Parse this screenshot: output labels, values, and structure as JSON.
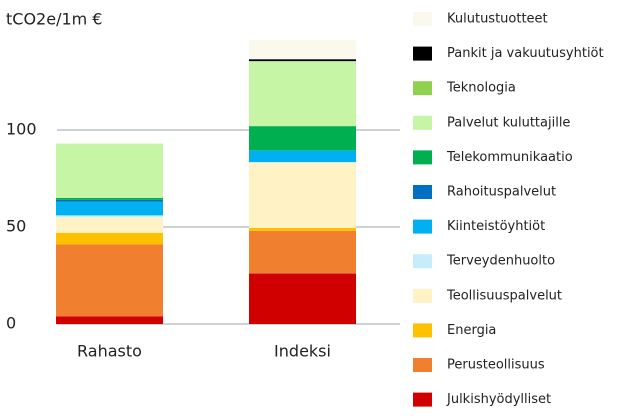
{
  "chart_data": {
    "type": "stacked_bar",
    "ylabel": "tCO2e/1m €",
    "categories": [
      "Rahasto",
      "Indeksi"
    ],
    "ylim": [
      0,
      150
    ],
    "yticks": [
      0,
      50,
      100
    ],
    "grid": true,
    "series": [
      {
        "name": "Kulutustuotteet",
        "color": "#fbf8ee",
        "values": [
          0,
          10
        ]
      },
      {
        "name": "Pankit ja vakuutusyhtiöt",
        "color": "#000000",
        "values": [
          0,
          1
        ]
      },
      {
        "name": "Teknologia",
        "color": "#92d050",
        "values": [
          0,
          0
        ]
      },
      {
        "name": "Palvelut kuluttajille",
        "color": "#c6f5a6",
        "values": [
          28,
          33.5
        ]
      },
      {
        "name": "Telekommunikaatio",
        "color": "#00b050",
        "values": [
          1,
          12.5
        ]
      },
      {
        "name": "Rahoituspalvelut",
        "color": "#0070c0",
        "values": [
          1,
          0
        ]
      },
      {
        "name": "Kiinteistöyhtiöt",
        "color": "#00b0f0",
        "values": [
          7,
          6
        ]
      },
      {
        "name": "Terveydenhuolto",
        "color": "#c5eefa",
        "values": [
          1,
          0.5
        ]
      },
      {
        "name": "Teollisuuspalvelut",
        "color": "#fff2c4",
        "values": [
          8,
          33.5
        ]
      },
      {
        "name": "Energia",
        "color": "#ffc000",
        "values": [
          6,
          1.5
        ]
      },
      {
        "name": "Perusteollisuus",
        "color": "#f08030",
        "values": [
          37,
          22
        ]
      },
      {
        "name": "Julkishyödylliset",
        "color": "#d00000",
        "values": [
          4,
          26
        ]
      }
    ]
  }
}
